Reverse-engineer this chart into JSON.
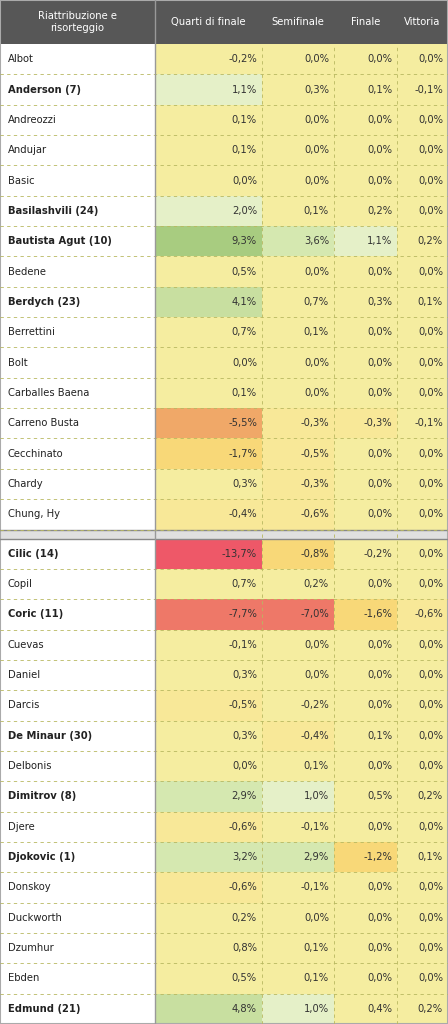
{
  "title": "Riattribuzione e\nrisorteggio",
  "col_headers": [
    "Quarti di finale",
    "Semifinale",
    "Finale",
    "Vittoria"
  ],
  "rows": [
    {
      "name": "Albot",
      "bold": false,
      "values": [
        "-0,2%",
        "0,0%",
        "0,0%",
        "0,0%"
      ],
      "nums": [
        -0.2,
        0.0,
        0.0,
        0.0
      ],
      "group": 0
    },
    {
      "name": "Anderson (7)",
      "bold": true,
      "values": [
        "1,1%",
        "0,3%",
        "0,1%",
        "-0,1%"
      ],
      "nums": [
        1.1,
        0.3,
        0.1,
        -0.1
      ],
      "group": 0
    },
    {
      "name": "Andreozzi",
      "bold": false,
      "values": [
        "0,1%",
        "0,0%",
        "0,0%",
        "0,0%"
      ],
      "nums": [
        0.1,
        0.0,
        0.0,
        0.0
      ],
      "group": 0
    },
    {
      "name": "Andujar",
      "bold": false,
      "values": [
        "0,1%",
        "0,0%",
        "0,0%",
        "0,0%"
      ],
      "nums": [
        0.1,
        0.0,
        0.0,
        0.0
      ],
      "group": 0
    },
    {
      "name": "Basic",
      "bold": false,
      "values": [
        "0,0%",
        "0,0%",
        "0,0%",
        "0,0%"
      ],
      "nums": [
        0.0,
        0.0,
        0.0,
        0.0
      ],
      "group": 0
    },
    {
      "name": "Basilashvili (24)",
      "bold": true,
      "values": [
        "2,0%",
        "0,1%",
        "0,2%",
        "0,0%"
      ],
      "nums": [
        2.0,
        0.1,
        0.2,
        0.0
      ],
      "group": 0
    },
    {
      "name": "Bautista Agut (10)",
      "bold": true,
      "values": [
        "9,3%",
        "3,6%",
        "1,1%",
        "0,2%"
      ],
      "nums": [
        9.3,
        3.6,
        1.1,
        0.2
      ],
      "group": 0
    },
    {
      "name": "Bedene",
      "bold": false,
      "values": [
        "0,5%",
        "0,0%",
        "0,0%",
        "0,0%"
      ],
      "nums": [
        0.5,
        0.0,
        0.0,
        0.0
      ],
      "group": 0
    },
    {
      "name": "Berdych (23)",
      "bold": true,
      "values": [
        "4,1%",
        "0,7%",
        "0,3%",
        "0,1%"
      ],
      "nums": [
        4.1,
        0.7,
        0.3,
        0.1
      ],
      "group": 0
    },
    {
      "name": "Berrettini",
      "bold": false,
      "values": [
        "0,7%",
        "0,1%",
        "0,0%",
        "0,0%"
      ],
      "nums": [
        0.7,
        0.1,
        0.0,
        0.0
      ],
      "group": 0
    },
    {
      "name": "Bolt",
      "bold": false,
      "values": [
        "0,0%",
        "0,0%",
        "0,0%",
        "0,0%"
      ],
      "nums": [
        0.0,
        0.0,
        0.0,
        0.0
      ],
      "group": 0
    },
    {
      "name": "Carballes Baena",
      "bold": false,
      "values": [
        "0,1%",
        "0,0%",
        "0,0%",
        "0,0%"
      ],
      "nums": [
        0.1,
        0.0,
        0.0,
        0.0
      ],
      "group": 0
    },
    {
      "name": "Carreno Busta",
      "bold": false,
      "values": [
        "-5,5%",
        "-0,3%",
        "-0,3%",
        "-0,1%"
      ],
      "nums": [
        -5.5,
        -0.3,
        -0.3,
        -0.1
      ],
      "group": 0
    },
    {
      "name": "Cecchinato",
      "bold": false,
      "values": [
        "-1,7%",
        "-0,5%",
        "0,0%",
        "0,0%"
      ],
      "nums": [
        -1.7,
        -0.5,
        0.0,
        0.0
      ],
      "group": 0
    },
    {
      "name": "Chardy",
      "bold": false,
      "values": [
        "0,3%",
        "-0,3%",
        "0,0%",
        "0,0%"
      ],
      "nums": [
        0.3,
        -0.3,
        0.0,
        0.0
      ],
      "group": 0
    },
    {
      "name": "Chung, Hy",
      "bold": false,
      "values": [
        "-0,4%",
        "-0,6%",
        "0,0%",
        "0,0%"
      ],
      "nums": [
        -0.4,
        -0.6,
        0.0,
        0.0
      ],
      "group": 0
    },
    {
      "name": "Cilic (14)",
      "bold": true,
      "values": [
        "-13,7%",
        "-0,8%",
        "-0,2%",
        "0,0%"
      ],
      "nums": [
        -13.7,
        -0.8,
        -0.2,
        0.0
      ],
      "group": 1
    },
    {
      "name": "Copil",
      "bold": false,
      "values": [
        "0,7%",
        "0,2%",
        "0,0%",
        "0,0%"
      ],
      "nums": [
        0.7,
        0.2,
        0.0,
        0.0
      ],
      "group": 1
    },
    {
      "name": "Coric (11)",
      "bold": true,
      "values": [
        "-7,7%",
        "-7,0%",
        "-1,6%",
        "-0,6%"
      ],
      "nums": [
        -7.7,
        -7.0,
        -1.6,
        -0.6
      ],
      "group": 1
    },
    {
      "name": "Cuevas",
      "bold": false,
      "values": [
        "-0,1%",
        "0,0%",
        "0,0%",
        "0,0%"
      ],
      "nums": [
        -0.1,
        0.0,
        0.0,
        0.0
      ],
      "group": 1
    },
    {
      "name": "Daniel",
      "bold": false,
      "values": [
        "0,3%",
        "0,0%",
        "0,0%",
        "0,0%"
      ],
      "nums": [
        0.3,
        0.0,
        0.0,
        0.0
      ],
      "group": 1
    },
    {
      "name": "Darcis",
      "bold": false,
      "values": [
        "-0,5%",
        "-0,2%",
        "0,0%",
        "0,0%"
      ],
      "nums": [
        -0.5,
        -0.2,
        0.0,
        0.0
      ],
      "group": 1
    },
    {
      "name": "De Minaur (30)",
      "bold": true,
      "values": [
        "0,3%",
        "-0,4%",
        "0,1%",
        "0,0%"
      ],
      "nums": [
        0.3,
        -0.4,
        0.1,
        0.0
      ],
      "group": 1
    },
    {
      "name": "Delbonis",
      "bold": false,
      "values": [
        "0,0%",
        "0,1%",
        "0,0%",
        "0,0%"
      ],
      "nums": [
        0.0,
        0.1,
        0.0,
        0.0
      ],
      "group": 1
    },
    {
      "name": "Dimitrov (8)",
      "bold": true,
      "values": [
        "2,9%",
        "1,0%",
        "0,5%",
        "0,2%"
      ],
      "nums": [
        2.9,
        1.0,
        0.5,
        0.2
      ],
      "group": 1
    },
    {
      "name": "Djere",
      "bold": false,
      "values": [
        "-0,6%",
        "-0,1%",
        "0,0%",
        "0,0%"
      ],
      "nums": [
        -0.6,
        -0.1,
        0.0,
        0.0
      ],
      "group": 1
    },
    {
      "name": "Djokovic (1)",
      "bold": true,
      "values": [
        "3,2%",
        "2,9%",
        "-1,2%",
        "0,1%"
      ],
      "nums": [
        3.2,
        2.9,
        -1.2,
        0.1
      ],
      "group": 1
    },
    {
      "name": "Donskoy",
      "bold": false,
      "values": [
        "-0,6%",
        "-0,1%",
        "0,0%",
        "0,0%"
      ],
      "nums": [
        -0.6,
        -0.1,
        0.0,
        0.0
      ],
      "group": 1
    },
    {
      "name": "Duckworth",
      "bold": false,
      "values": [
        "0,2%",
        "0,0%",
        "0,0%",
        "0,0%"
      ],
      "nums": [
        0.2,
        0.0,
        0.0,
        0.0
      ],
      "group": 1
    },
    {
      "name": "Dzumhur",
      "bold": false,
      "values": [
        "0,8%",
        "0,1%",
        "0,0%",
        "0,0%"
      ],
      "nums": [
        0.8,
        0.1,
        0.0,
        0.0
      ],
      "group": 1
    },
    {
      "name": "Ebden",
      "bold": false,
      "values": [
        "0,5%",
        "0,1%",
        "0,0%",
        "0,0%"
      ],
      "nums": [
        0.5,
        0.1,
        0.0,
        0.0
      ],
      "group": 1
    },
    {
      "name": "Edmund (21)",
      "bold": true,
      "values": [
        "4,8%",
        "1,0%",
        "0,4%",
        "0,2%"
      ],
      "nums": [
        4.8,
        1.0,
        0.4,
        0.2
      ],
      "group": 1
    }
  ],
  "header_bg": "#575757",
  "header_fg": "#ffffff",
  "bg_white": "#ffffff",
  "bg_yellow": "#f5e87a",
  "bg_yellow_light": "#fdf5c8",
  "separator_color": "#c8c878",
  "group_sep_color": "#aaaaaa"
}
